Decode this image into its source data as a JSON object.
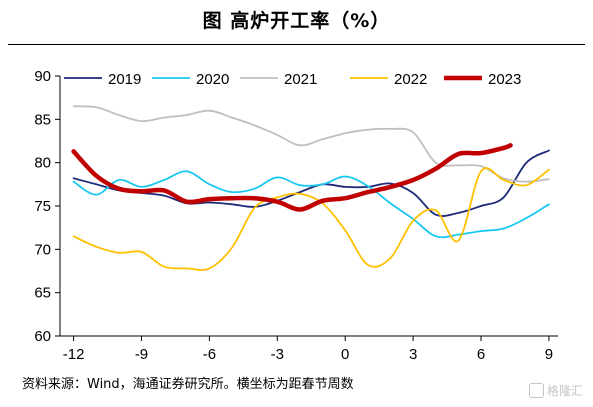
{
  "chart_data": {
    "type": "line",
    "title": "图  高炉开工率（%）",
    "xlabel": "",
    "ylabel": "",
    "xlim": [
      -12.6,
      9.4
    ],
    "ylim": [
      60,
      90
    ],
    "x_ticks": [
      -12,
      -9,
      -6,
      -3,
      0,
      3,
      6,
      9
    ],
    "y_ticks": [
      60,
      65,
      70,
      75,
      80,
      85,
      90
    ],
    "legend_position": "top",
    "grid": false,
    "series": [
      {
        "name": "2019",
        "color": "#1f2a7a",
        "x": [
          -12,
          -11,
          -10,
          -9,
          -8,
          -7,
          -6,
          -5,
          -4,
          -3,
          -2,
          -1,
          0,
          1,
          2,
          3,
          4,
          5,
          6,
          7,
          8,
          9
        ],
        "y": [
          78.2,
          77.5,
          76.8,
          76.5,
          76.2,
          75.3,
          75.4,
          75.2,
          74.9,
          75.6,
          76.6,
          77.5,
          77.2,
          77.2,
          77.6,
          76.5,
          74.0,
          74.2,
          75.0,
          76.0,
          80.0,
          81.4
        ]
      },
      {
        "name": "2020",
        "color": "#19c8f0",
        "x": [
          -12,
          -11,
          -10,
          -9,
          -8,
          -7,
          -6,
          -5,
          -4,
          -3,
          -2,
          -1,
          0,
          1,
          2,
          3,
          4,
          5,
          6,
          7,
          8,
          9
        ],
        "y": [
          77.8,
          76.3,
          78.0,
          77.2,
          78.0,
          79.0,
          77.5,
          76.6,
          77.0,
          78.3,
          77.4,
          77.5,
          78.4,
          77.3,
          75.3,
          73.5,
          71.5,
          71.7,
          72.1,
          72.4,
          73.6,
          75.2
        ]
      },
      {
        "name": "2021",
        "color": "#bfbfbf",
        "x": [
          -12,
          -11,
          -10,
          -9,
          -8,
          -7,
          -6,
          -5,
          -4,
          -3,
          -2,
          -1,
          0,
          1,
          2,
          3,
          4,
          5,
          6,
          7,
          8,
          9
        ],
        "y": [
          86.5,
          86.4,
          85.5,
          84.8,
          85.2,
          85.5,
          86.0,
          85.2,
          84.3,
          83.2,
          82.0,
          82.7,
          83.4,
          83.8,
          83.9,
          83.5,
          80.0,
          79.7,
          79.6,
          78.2,
          77.8,
          78.1
        ]
      },
      {
        "name": "2022",
        "color": "#ffc000",
        "x": [
          -12,
          -11,
          -10,
          -9,
          -8,
          -7,
          -6,
          -5,
          -4,
          -3,
          -2,
          -1,
          0,
          1,
          2,
          3,
          4,
          5,
          6,
          7,
          8,
          9
        ],
        "y": [
          71.5,
          70.3,
          69.6,
          69.7,
          68.0,
          67.8,
          67.8,
          70.2,
          74.8,
          76.0,
          76.4,
          75.3,
          72.2,
          68.2,
          69.0,
          73.3,
          74.5,
          71.0,
          79.0,
          78.0,
          77.4,
          79.2
        ]
      },
      {
        "name": "2023",
        "color": "#c00000",
        "x": [
          -12,
          -11,
          -10,
          -9,
          -8,
          -7,
          -6,
          -5,
          -4,
          -3,
          -2,
          -1,
          0,
          1,
          2,
          3,
          4,
          5,
          6,
          7,
          7.3
        ],
        "y": [
          81.3,
          78.5,
          77.0,
          76.7,
          76.8,
          75.5,
          75.8,
          75.9,
          75.9,
          75.5,
          74.6,
          75.6,
          75.9,
          76.6,
          77.2,
          78.0,
          79.3,
          81.0,
          81.1,
          81.7,
          82.0
        ]
      }
    ]
  },
  "source_text": "资料来源：Wind，海通证券研究所。横坐标为距春节周数",
  "watermark": {
    "icon": "gelonghui-logo-icon",
    "text": "格隆汇"
  }
}
